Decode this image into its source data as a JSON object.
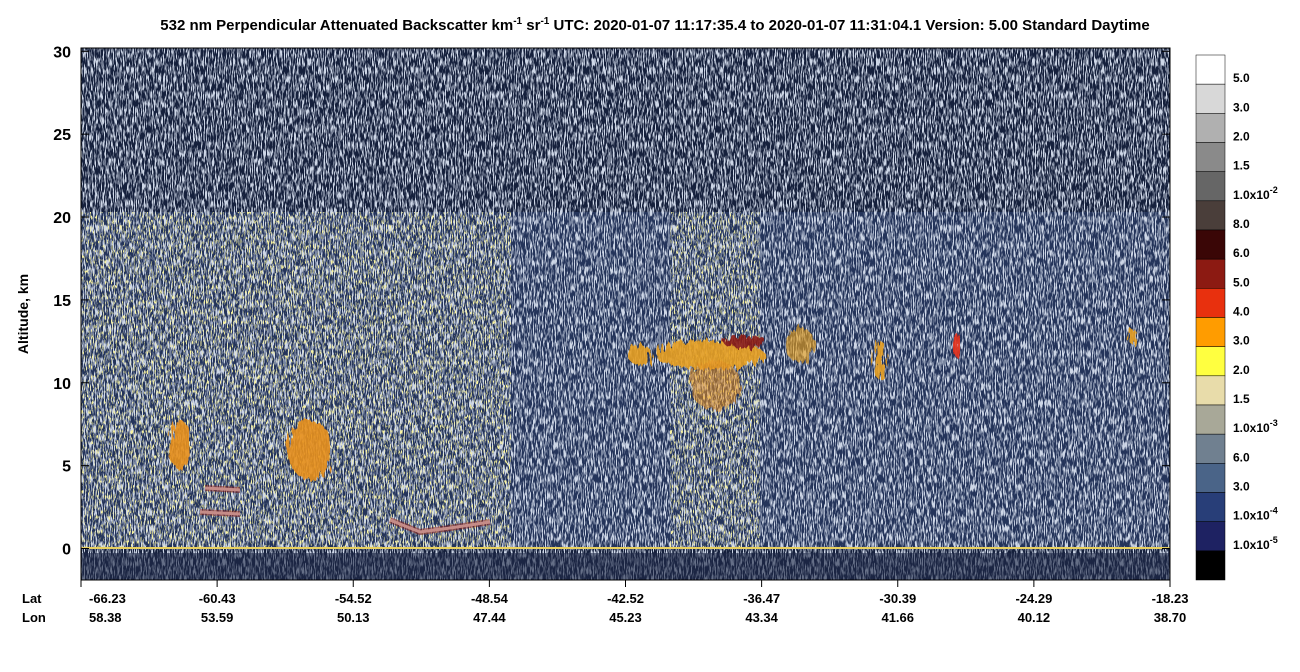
{
  "chart_data": {
    "type": "curtain",
    "title": [
      "532 nm Perpendicular Attenuated Backscatter km",
      "-1",
      " sr",
      "-1",
      "  UTC: 2020-01-07 11:17:35.4 to 2020-01-07 11:31:04.1  Version: 5.00 Standard Daytime"
    ],
    "y_label": "Altitude, km",
    "ylim": [
      -1.9,
      30.2
    ],
    "yticks": [
      0,
      5,
      10,
      15,
      20,
      25,
      30
    ],
    "x_row_labels": [
      "Lat",
      "Lon"
    ],
    "lat": [
      -66.23,
      -60.43,
      -54.52,
      -48.54,
      -42.52,
      -36.47,
      -30.39,
      -24.29,
      -18.23
    ],
    "lon": [
      58.38,
      53.59,
      50.13,
      47.44,
      45.23,
      43.34,
      41.66,
      40.12,
      {
        "value": 38.7,
        "label": "38.70"
      }
    ],
    "colorbar": {
      "colors": [
        "#ffffff",
        "#d8d8d8",
        "#b0b0b0",
        "#8a8a8a",
        "#666666",
        "#4a3e3a",
        "#3a0606",
        "#8c1a12",
        "#e8300e",
        "#ff9c00",
        "#ffff40",
        "#e8dcaa",
        "#a8a898",
        "#708090",
        "#4a6488",
        "#283e78",
        "#1e2262",
        "#000000"
      ],
      "labels": [
        {
          "text": "5.0"
        },
        {
          "text": "3.0"
        },
        {
          "text": "2.0"
        },
        {
          "text": "1.5"
        },
        {
          "text": "1.0x10",
          "exp": "-2"
        },
        {
          "text": "8.0"
        },
        {
          "text": "6.0"
        },
        {
          "text": "5.0"
        },
        {
          "text": "4.0"
        },
        {
          "text": "3.0"
        },
        {
          "text": "2.0"
        },
        {
          "text": "1.5"
        },
        {
          "text": "1.0x10",
          "exp": "-3"
        },
        {
          "text": "6.0"
        },
        {
          "text": "3.0"
        },
        {
          "text": "1.0x10",
          "exp": "-4"
        },
        {
          "text": "1.0x10",
          "exp": "-5"
        }
      ]
    }
  }
}
